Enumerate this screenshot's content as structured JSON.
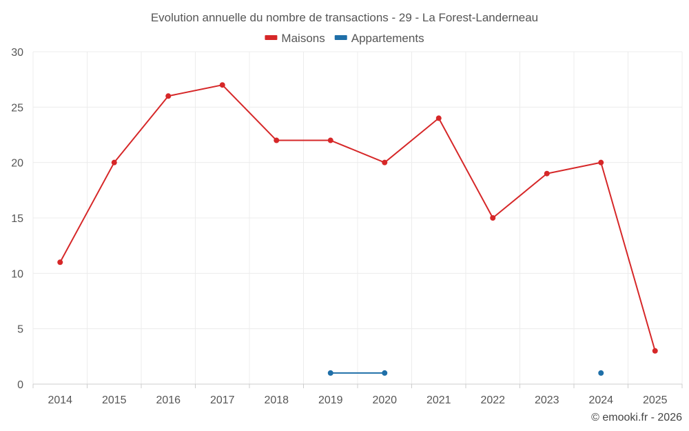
{
  "chart_data": {
    "type": "line",
    "title": "Evolution annuelle du nombre de transactions - 29 - La Forest-Landerneau",
    "categories": [
      "2014",
      "2015",
      "2016",
      "2017",
      "2018",
      "2019",
      "2020",
      "2021",
      "2022",
      "2023",
      "2024",
      "2025"
    ],
    "ylim": [
      0,
      30
    ],
    "yticks": [
      0,
      5,
      10,
      15,
      20,
      25,
      30
    ],
    "grid": true,
    "legend_position": "top-center",
    "series": [
      {
        "name": "Maisons",
        "color": "#d62728",
        "values": [
          11,
          20,
          26,
          27,
          22,
          22,
          20,
          24,
          15,
          19,
          20,
          3
        ]
      },
      {
        "name": "Appartements",
        "color": "#1f6fa8",
        "values": [
          null,
          null,
          null,
          null,
          null,
          1,
          1,
          null,
          null,
          null,
          1,
          null
        ]
      }
    ],
    "credit": "© emooki.fr - 2026"
  }
}
